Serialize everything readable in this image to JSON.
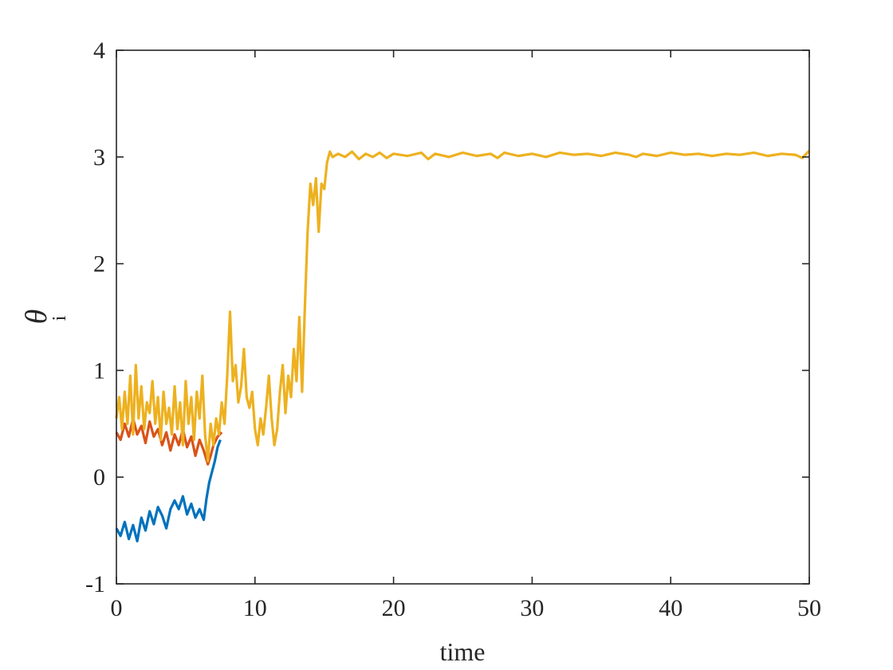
{
  "chart_data": {
    "type": "line",
    "xlabel": "time",
    "ylabel": "θ",
    "ylabel_sub": "i",
    "xlim": [
      0,
      50
    ],
    "ylim": [
      -1,
      4
    ],
    "xticks": [
      0,
      10,
      20,
      30,
      40,
      50
    ],
    "xtick_labels": [
      "0",
      "10",
      "20",
      "30",
      "40",
      "50"
    ],
    "yticks": [
      -1,
      0,
      1,
      2,
      3,
      4
    ],
    "ytick_labels": [
      "-1",
      "0",
      "1",
      "2",
      "3",
      "4"
    ],
    "grid": false,
    "legend": "none",
    "series": [
      {
        "color": "#0072BD",
        "x": [
          0,
          0.3,
          0.6,
          0.9,
          1.2,
          1.5,
          1.8,
          2.1,
          2.4,
          2.7,
          3.0,
          3.3,
          3.6,
          3.9,
          4.2,
          4.5,
          4.8,
          5.1,
          5.4,
          5.7,
          6.0,
          6.3,
          6.5,
          6.7,
          6.9,
          7.1,
          7.3,
          7.5
        ],
        "y": [
          -0.48,
          -0.55,
          -0.42,
          -0.58,
          -0.45,
          -0.6,
          -0.38,
          -0.5,
          -0.32,
          -0.44,
          -0.28,
          -0.36,
          -0.48,
          -0.3,
          -0.22,
          -0.3,
          -0.18,
          -0.35,
          -0.25,
          -0.38,
          -0.3,
          -0.4,
          -0.2,
          -0.05,
          0.05,
          0.15,
          0.28,
          0.35
        ]
      },
      {
        "color": "#D95319",
        "x": [
          0,
          0.3,
          0.6,
          0.9,
          1.2,
          1.5,
          1.8,
          2.1,
          2.4,
          2.7,
          3.0,
          3.3,
          3.6,
          3.9,
          4.2,
          4.5,
          4.8,
          5.1,
          5.4,
          5.7,
          6.0,
          6.3,
          6.6,
          6.8,
          7.0,
          7.3,
          7.6
        ],
        "y": [
          0.42,
          0.35,
          0.5,
          0.38,
          0.55,
          0.4,
          0.48,
          0.32,
          0.52,
          0.38,
          0.45,
          0.3,
          0.42,
          0.25,
          0.4,
          0.3,
          0.45,
          0.28,
          0.38,
          0.2,
          0.35,
          0.25,
          0.12,
          0.2,
          0.3,
          0.38,
          0.42
        ]
      },
      {
        "color": "#EDB120",
        "x": [
          0,
          0.2,
          0.4,
          0.6,
          0.8,
          1.0,
          1.2,
          1.4,
          1.6,
          1.8,
          2.0,
          2.2,
          2.4,
          2.6,
          2.8,
          3.0,
          3.2,
          3.4,
          3.6,
          3.8,
          4.0,
          4.2,
          4.4,
          4.6,
          4.8,
          5.0,
          5.2,
          5.4,
          5.6,
          5.8,
          6.0,
          6.2,
          6.4,
          6.6,
          6.8,
          7.0,
          7.2,
          7.4,
          7.6,
          7.8,
          8.0,
          8.2,
          8.4,
          8.6,
          8.8,
          9.0,
          9.2,
          9.4,
          9.6,
          9.8,
          10.0,
          10.2,
          10.4,
          10.6,
          10.8,
          11.0,
          11.2,
          11.4,
          11.6,
          11.8,
          12.0,
          12.2,
          12.4,
          12.6,
          12.8,
          13.0,
          13.2,
          13.4,
          13.6,
          13.8,
          14.0,
          14.2,
          14.4,
          14.6,
          14.8,
          15.0,
          15.2,
          15.4,
          15.6,
          16.0,
          16.5,
          17.0,
          17.5,
          18.0,
          18.5,
          19.0,
          19.5,
          20.0,
          21.0,
          22.0,
          22.5,
          23.0,
          24.0,
          25.0,
          26.0,
          27.0,
          27.5,
          28.0,
          29.0,
          30.0,
          31.0,
          32.0,
          33.0,
          34.0,
          35.0,
          36.0,
          37.0,
          37.5,
          38.0,
          39.0,
          40.0,
          41.0,
          42.0,
          43.0,
          44.0,
          45.0,
          46.0,
          47.0,
          48.0,
          49.0,
          49.5,
          50.0
        ],
        "y": [
          0.55,
          0.75,
          0.45,
          0.8,
          0.5,
          0.95,
          0.4,
          1.05,
          0.55,
          0.85,
          0.45,
          0.7,
          0.6,
          0.9,
          0.5,
          0.75,
          0.35,
          0.8,
          0.5,
          0.65,
          0.4,
          0.85,
          0.45,
          0.7,
          0.3,
          0.9,
          0.5,
          0.75,
          0.35,
          0.8,
          0.55,
          0.95,
          0.4,
          0.15,
          0.5,
          0.3,
          0.55,
          0.4,
          0.7,
          0.5,
          0.95,
          1.55,
          0.9,
          1.05,
          0.7,
          0.85,
          1.2,
          0.75,
          0.65,
          0.8,
          0.45,
          0.3,
          0.55,
          0.4,
          0.65,
          0.95,
          0.55,
          0.3,
          0.45,
          0.8,
          1.05,
          0.6,
          0.95,
          0.75,
          1.2,
          0.9,
          1.5,
          0.8,
          1.6,
          2.3,
          2.75,
          2.55,
          2.8,
          2.3,
          2.75,
          2.7,
          2.95,
          3.05,
          3.0,
          3.03,
          3.0,
          3.05,
          2.98,
          3.03,
          3.0,
          3.04,
          2.99,
          3.03,
          3.01,
          3.04,
          2.98,
          3.03,
          3.0,
          3.04,
          3.01,
          3.03,
          2.99,
          3.04,
          3.01,
          3.03,
          3.0,
          3.04,
          3.02,
          3.03,
          3.01,
          3.04,
          3.02,
          3.0,
          3.03,
          3.01,
          3.04,
          3.02,
          3.03,
          3.01,
          3.03,
          3.02,
          3.04,
          3.01,
          3.03,
          3.02,
          2.99,
          3.06
        ]
      }
    ]
  }
}
